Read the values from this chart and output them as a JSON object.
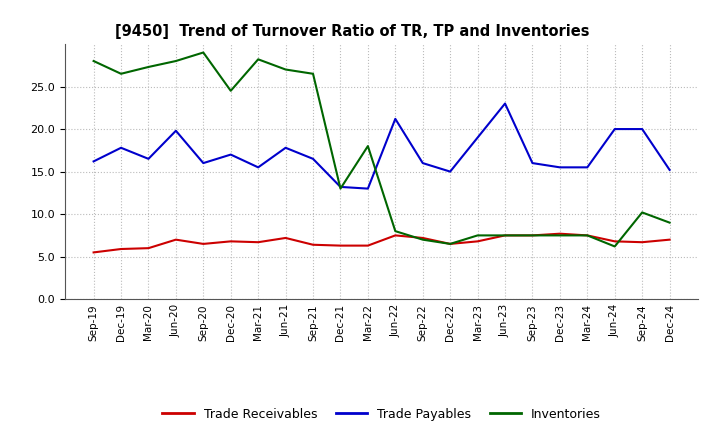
{
  "title": "[9450]  Trend of Turnover Ratio of TR, TP and Inventories",
  "x_labels": [
    "Sep-19",
    "Dec-19",
    "Mar-20",
    "Jun-20",
    "Sep-20",
    "Dec-20",
    "Mar-21",
    "Jun-21",
    "Sep-21",
    "Dec-21",
    "Mar-22",
    "Jun-22",
    "Sep-22",
    "Dec-22",
    "Mar-23",
    "Jun-23",
    "Sep-23",
    "Dec-23",
    "Mar-24",
    "Jun-24",
    "Sep-24",
    "Dec-24"
  ],
  "trade_receivables": [
    5.5,
    5.9,
    6.0,
    7.0,
    6.5,
    6.8,
    6.7,
    7.2,
    6.4,
    6.3,
    6.3,
    7.5,
    7.2,
    6.5,
    6.8,
    7.5,
    7.5,
    7.7,
    7.5,
    6.8,
    6.7,
    7.0
  ],
  "trade_payables": [
    16.2,
    17.8,
    16.5,
    19.8,
    16.0,
    17.0,
    15.5,
    17.8,
    16.5,
    13.2,
    13.0,
    21.2,
    16.0,
    15.0,
    19.0,
    23.0,
    16.0,
    15.5,
    15.5,
    20.0,
    20.0,
    15.2
  ],
  "inventories": [
    28.0,
    26.5,
    27.3,
    28.0,
    29.0,
    24.5,
    28.2,
    27.0,
    26.5,
    13.0,
    18.0,
    8.0,
    7.0,
    6.5,
    7.5,
    7.5,
    7.5,
    7.5,
    7.5,
    6.2,
    10.2,
    9.0
  ],
  "tr_color": "#cc0000",
  "tp_color": "#0000cc",
  "inv_color": "#006600",
  "ylim": [
    0,
    30
  ],
  "yticks": [
    0.0,
    5.0,
    10.0,
    15.0,
    20.0,
    25.0
  ],
  "legend_labels": [
    "Trade Receivables",
    "Trade Payables",
    "Inventories"
  ],
  "background_color": "#ffffff",
  "grid_color": "#bbbbbb"
}
